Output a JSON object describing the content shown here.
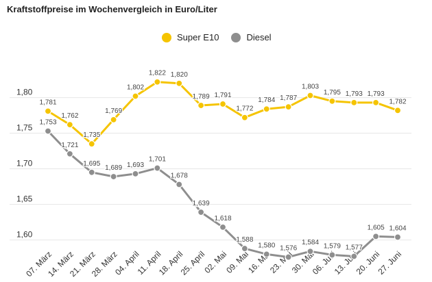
{
  "title": "Kraftstoffpreise im Wochenvergleich in Euro/Liter",
  "colors": {
    "super": "#f5c400",
    "diesel": "#8e8e8e",
    "grid": "#e6e6e6"
  },
  "chart_data": {
    "type": "line",
    "title": "Kraftstoffpreise im Wochenvergleich in Euro/Liter",
    "xlabel": "",
    "ylabel": "",
    "ylim": [
      1.55,
      1.85
    ],
    "yticks": [
      1.6,
      1.65,
      1.7,
      1.75,
      1.8
    ],
    "ytick_labels": [
      "1,60",
      "1,65",
      "1,70",
      "1,75",
      "1,80"
    ],
    "grid": "horizontal",
    "legend_position": "top",
    "categories": [
      "07. März",
      "14. März",
      "21. März",
      "28. März",
      "04. April",
      "11. April",
      "18. April",
      "25. April",
      "02. Mai",
      "09. Mai",
      "16. Mai",
      "23. Mai",
      "30. Mai",
      "06. Juni",
      "13. Juni",
      "20. Juni",
      "27. Juni"
    ],
    "series": [
      {
        "name": "Super E10",
        "color": "#f5c400",
        "values": [
          1.781,
          1.762,
          1.735,
          1.769,
          1.802,
          1.822,
          1.82,
          1.789,
          1.791,
          1.772,
          1.784,
          1.787,
          1.803,
          1.795,
          1.793,
          1.793,
          1.782
        ],
        "labels": [
          "1,781",
          "1,762",
          "1,735",
          "1,769",
          "1,802",
          "1,822",
          "1,820",
          "1,789",
          "1,791",
          "1,772",
          "1,784",
          "1,787",
          "1,803",
          "1,795",
          "1,793",
          "1,793",
          "1,782"
        ]
      },
      {
        "name": "Diesel",
        "color": "#8e8e8e",
        "values": [
          1.753,
          1.721,
          1.695,
          1.689,
          1.693,
          1.701,
          1.678,
          1.639,
          1.618,
          1.588,
          1.58,
          1.576,
          1.584,
          1.579,
          1.577,
          1.605,
          1.604
        ],
        "labels": [
          "1,753",
          "1,721",
          "1,695",
          "1,689",
          "1,693",
          "1,701",
          "1,678",
          "1,639",
          "1,618",
          "1,588",
          "1,580",
          "1,576",
          "1,584",
          "1,579",
          "1,577",
          "1,605",
          "1,604"
        ]
      }
    ]
  }
}
